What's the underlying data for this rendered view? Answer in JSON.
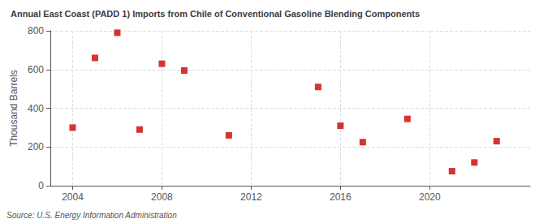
{
  "chart_data": {
    "type": "scatter",
    "title": "Annual East Coast (PADD 1) Imports from Chile of Conventional Gasoline Blending Components",
    "ylabel": "Thousand Barrels",
    "source": "Source: U.S. Energy Information Administration",
    "x": [
      2004,
      2005,
      2006,
      2007,
      2008,
      2009,
      2011,
      2015,
      2016,
      2017,
      2019,
      2021,
      2022,
      2023
    ],
    "values": [
      300,
      660,
      790,
      290,
      630,
      595,
      260,
      510,
      310,
      225,
      345,
      75,
      120,
      230
    ],
    "color": "#cc0000",
    "marker": "square",
    "xlim": [
      2003.0,
      2024.5
    ],
    "xticks": [
      2004,
      2008,
      2012,
      2016,
      2020
    ],
    "ylim": [
      0,
      800
    ],
    "yticks": [
      0,
      200,
      400,
      600,
      800
    ],
    "grid": true
  }
}
